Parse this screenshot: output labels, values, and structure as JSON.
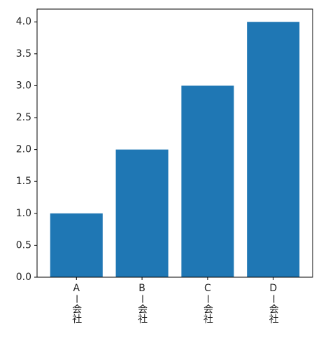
{
  "chart_data": {
    "type": "bar",
    "categories": [
      "Aー会社",
      "Bー会社",
      "Cー会社",
      "Dー会社"
    ],
    "values": [
      1,
      2,
      3,
      4
    ],
    "color": "#1f77b4",
    "ylim": [
      0,
      4.2
    ],
    "yticks": [
      {
        "value": 0,
        "label": "0.0"
      },
      0.5,
      {
        "value": 1,
        "label": "1.0"
      },
      1.5,
      {
        "value": 2,
        "label": "2.0"
      },
      2.5,
      {
        "value": 3,
        "label": "3.0"
      },
      3.5,
      {
        "value": 4,
        "label": "4.0"
      }
    ]
  }
}
